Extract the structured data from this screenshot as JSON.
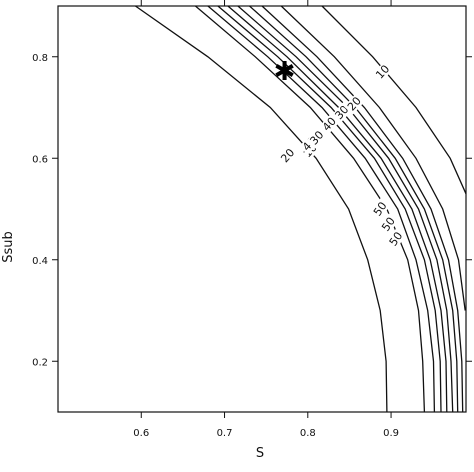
{
  "chart_data": {
    "type": "contour",
    "title": "",
    "xlabel": "S",
    "ylabel": "Ssub",
    "xlim": [
      0.5,
      0.99
    ],
    "ylim": [
      0.1,
      0.9
    ],
    "x_ticks": [
      0.6,
      0.7,
      0.8,
      0.9
    ],
    "x_tick_labels": [
      "0.6",
      "0.7",
      "0.8",
      "0.9"
    ],
    "y_ticks": [
      0.2,
      0.4,
      0.6,
      0.8
    ],
    "y_tick_labels": [
      "0.2",
      "0.4",
      "0.6",
      "0.8"
    ],
    "grid": false,
    "optimum_marker": {
      "symbol": "✱",
      "x": 0.772,
      "y": 0.77
    },
    "contours": [
      {
        "level": "10",
        "points": [
          [
            0.593,
            0.9
          ],
          [
            0.68,
            0.8
          ],
          [
            0.755,
            0.7
          ],
          [
            0.81,
            0.6
          ],
          [
            0.849,
            0.5
          ],
          [
            0.872,
            0.4
          ],
          [
            0.887,
            0.3
          ],
          [
            0.894,
            0.2
          ],
          [
            0.895,
            0.1
          ]
        ]
      },
      {
        "level": "20",
        "points": [
          [
            0.665,
            0.9
          ],
          [
            0.737,
            0.8
          ],
          [
            0.803,
            0.7
          ],
          [
            0.855,
            0.6
          ],
          [
            0.895,
            0.5
          ],
          [
            0.92,
            0.4
          ],
          [
            0.933,
            0.3
          ],
          [
            0.938,
            0.2
          ],
          [
            0.94,
            0.1
          ]
        ]
      },
      {
        "level": "30",
        "points": [
          [
            0.68,
            0.9
          ],
          [
            0.752,
            0.8
          ],
          [
            0.817,
            0.7
          ],
          [
            0.869,
            0.6
          ],
          [
            0.908,
            0.5
          ],
          [
            0.93,
            0.4
          ],
          [
            0.944,
            0.3
          ],
          [
            0.951,
            0.2
          ],
          [
            0.952,
            0.1
          ]
        ]
      },
      {
        "level": "40",
        "points": [
          [
            0.692,
            0.9
          ],
          [
            0.764,
            0.8
          ],
          [
            0.828,
            0.7
          ],
          [
            0.88,
            0.6
          ],
          [
            0.917,
            0.5
          ],
          [
            0.94,
            0.4
          ],
          [
            0.953,
            0.3
          ],
          [
            0.959,
            0.2
          ],
          [
            0.96,
            0.1
          ]
        ]
      },
      {
        "level": "50",
        "points": [
          [
            0.704,
            0.9
          ],
          [
            0.775,
            0.8
          ],
          [
            0.837,
            0.7
          ],
          [
            0.888,
            0.6
          ],
          [
            0.925,
            0.5
          ],
          [
            0.947,
            0.4
          ],
          [
            0.96,
            0.3
          ],
          [
            0.966,
            0.2
          ],
          [
            0.967,
            0.1
          ]
        ]
      },
      {
        "level": "50",
        "points": [
          [
            0.716,
            0.9
          ],
          [
            0.786,
            0.8
          ],
          [
            0.848,
            0.7
          ],
          [
            0.897,
            0.6
          ],
          [
            0.933,
            0.5
          ],
          [
            0.955,
            0.4
          ],
          [
            0.967,
            0.3
          ],
          [
            0.972,
            0.2
          ],
          [
            0.974,
            0.1
          ]
        ]
      },
      {
        "level": "40",
        "points": [
          [
            0.73,
            0.9
          ],
          [
            0.798,
            0.8
          ],
          [
            0.857,
            0.7
          ],
          [
            0.905,
            0.6
          ],
          [
            0.94,
            0.5
          ],
          [
            0.962,
            0.4
          ],
          [
            0.974,
            0.3
          ],
          [
            0.979,
            0.2
          ],
          [
            0.98,
            0.1
          ]
        ]
      },
      {
        "level": "30",
        "points": [
          [
            0.745,
            0.9
          ],
          [
            0.811,
            0.8
          ],
          [
            0.868,
            0.7
          ],
          [
            0.914,
            0.6
          ],
          [
            0.948,
            0.5
          ],
          [
            0.969,
            0.4
          ],
          [
            0.98,
            0.3
          ],
          [
            0.985,
            0.2
          ],
          [
            0.986,
            0.1
          ]
        ]
      },
      {
        "level": "20",
        "points": [
          [
            0.768,
            0.9
          ],
          [
            0.832,
            0.8
          ],
          [
            0.886,
            0.7
          ],
          [
            0.93,
            0.6
          ],
          [
            0.962,
            0.5
          ],
          [
            0.981,
            0.4
          ],
          [
            0.989,
            0.3
          ]
        ]
      },
      {
        "level": "10",
        "points": [
          [
            0.817,
            0.9
          ],
          [
            0.878,
            0.8
          ],
          [
            0.93,
            0.7
          ],
          [
            0.971,
            0.6
          ],
          [
            0.99,
            0.53
          ]
        ]
      }
    ],
    "contour_labels": [
      {
        "text": "10",
        "x": 0.803,
        "y": 0.615,
        "angle": -48
      },
      {
        "text": "20",
        "x": 0.776,
        "y": 0.605,
        "angle": -48
      },
      {
        "text": "40",
        "x": 0.802,
        "y": 0.628,
        "angle": -48
      },
      {
        "text": "30",
        "x": 0.811,
        "y": 0.64,
        "angle": -48
      },
      {
        "text": "40",
        "x": 0.826,
        "y": 0.667,
        "angle": -48
      },
      {
        "text": "30",
        "x": 0.841,
        "y": 0.69,
        "angle": -48
      },
      {
        "text": "20",
        "x": 0.856,
        "y": 0.707,
        "angle": -48
      },
      {
        "text": "10",
        "x": 0.89,
        "y": 0.77,
        "angle": -48
      },
      {
        "text": "50",
        "x": 0.887,
        "y": 0.5,
        "angle": -55
      },
      {
        "text": "50",
        "x": 0.897,
        "y": 0.47,
        "angle": -55
      },
      {
        "text": "50",
        "x": 0.906,
        "y": 0.441,
        "angle": -55
      }
    ]
  }
}
